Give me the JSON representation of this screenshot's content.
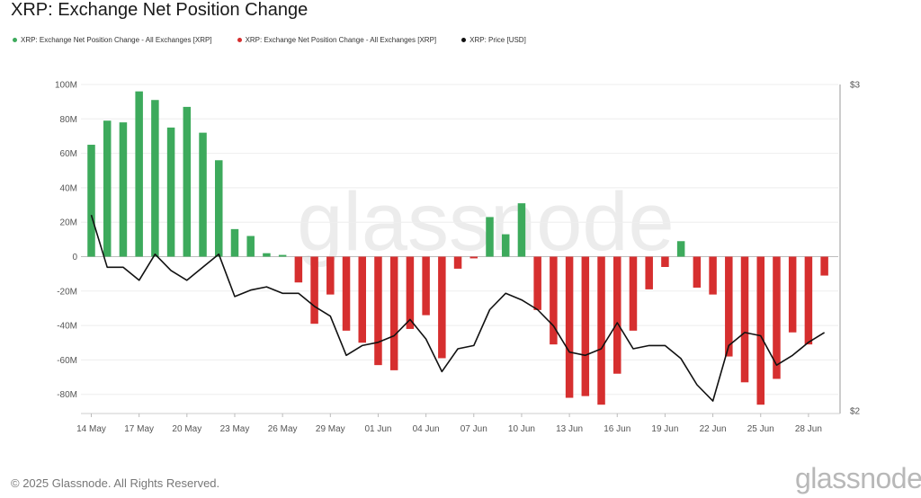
{
  "title": "XRP: Exchange Net Position Change",
  "legend": {
    "items": [
      {
        "label": "XRP: Exchange Net Position Change - All Exchanges [XRP]",
        "color": "#3daa5c"
      },
      {
        "label": "XRP: Exchange Net Position Change - All Exchanges [XRP]",
        "color": "#d62f2f"
      },
      {
        "label": "XRP: Price [USD]",
        "color": "#111111"
      }
    ]
  },
  "footer": {
    "copyright": "© 2025 Glassnode. All Rights Reserved.",
    "brand": "glassnode"
  },
  "watermark": "glassnode",
  "chart_data": {
    "type": "bar",
    "title": "XRP: Exchange Net Position Change",
    "positive_color": "#3daa5c",
    "negative_color": "#d62f2f",
    "line_color": "#111111",
    "grid": true,
    "legend_placement": "top-left",
    "x_tick_labels": [
      "14 May",
      "17 May",
      "20 May",
      "23 May",
      "26 May",
      "29 May",
      "01 Jun",
      "04 Jun",
      "07 Jun",
      "10 Jun",
      "13 Jun",
      "16 Jun",
      "19 Jun",
      "22 Jun",
      "25 Jun",
      "28 Jun"
    ],
    "y_left_ticks": [
      "100M",
      "80M",
      "60M",
      "40M",
      "20M",
      "0",
      "-20M",
      "-40M",
      "-60M",
      "-80M"
    ],
    "y_right_ticks": [
      "$3",
      "$2"
    ],
    "y_left_range": [
      -90,
      100
    ],
    "y_left_unit": "M XRP",
    "y_right_range": [
      2,
      3
    ],
    "series": [
      {
        "name": "XRP: Exchange Net Position Change - All Exchanges [XRP]",
        "axis": "left",
        "values": [
          65,
          79,
          78,
          96,
          91,
          75,
          87,
          72,
          56,
          16,
          12,
          2,
          1,
          -15,
          -39,
          -22,
          -43,
          -50,
          -63,
          -66,
          -42,
          -34,
          -59,
          -7,
          -1,
          23,
          13,
          31,
          -31,
          -51,
          -82,
          -81,
          -86,
          -68,
          -43,
          -19,
          -6,
          9,
          -18,
          -22,
          -58,
          -73,
          -86,
          -71,
          -44,
          -51,
          -11
        ]
      },
      {
        "name": "XRP: Price [USD]",
        "axis": "right",
        "values": [
          2.6,
          2.44,
          2.44,
          2.4,
          2.48,
          2.43,
          2.4,
          2.44,
          2.48,
          2.35,
          2.37,
          2.38,
          2.36,
          2.36,
          2.32,
          2.29,
          2.17,
          2.2,
          2.21,
          2.23,
          2.28,
          2.22,
          2.12,
          2.19,
          2.2,
          2.31,
          2.36,
          2.34,
          2.31,
          2.26,
          2.18,
          2.17,
          2.19,
          2.27,
          2.19,
          2.2,
          2.2,
          2.16,
          2.08,
          2.03,
          2.2,
          2.24,
          2.23,
          2.14,
          2.17,
          2.21,
          2.24
        ]
      }
    ]
  }
}
